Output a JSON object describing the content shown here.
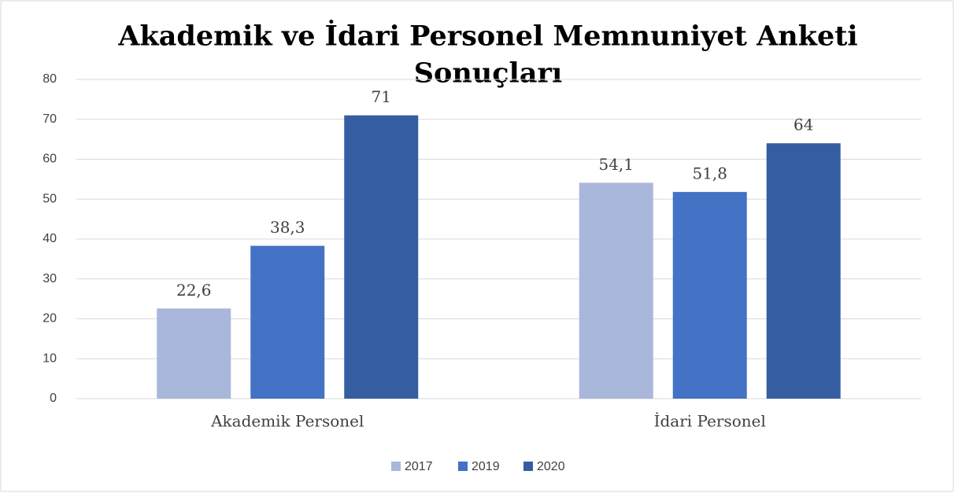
{
  "chart_data": {
    "type": "bar",
    "title": [
      "Akademik ve İdari Personel Memnuniyet Anketi",
      "Sonuçları"
    ],
    "categories": [
      "Akademik Personel",
      "İdari Personel"
    ],
    "series": [
      {
        "name": "2017",
        "color": "#a9b7db",
        "values": [
          22.6,
          54.1
        ],
        "value_labels": [
          "22,6",
          "54,1"
        ]
      },
      {
        "name": "2019",
        "color": "#4472c4",
        "values": [
          38.3,
          51.8
        ],
        "value_labels": [
          "38,3",
          "51,8"
        ]
      },
      {
        "name": "2020",
        "color": "#345ea1",
        "values": [
          71,
          64
        ],
        "value_labels": [
          "71",
          "64"
        ]
      }
    ],
    "ylim": [
      0,
      80
    ],
    "yticks": [
      0,
      10,
      20,
      30,
      40,
      50,
      60,
      70,
      80
    ],
    "grid": true,
    "legend": "bottom"
  }
}
